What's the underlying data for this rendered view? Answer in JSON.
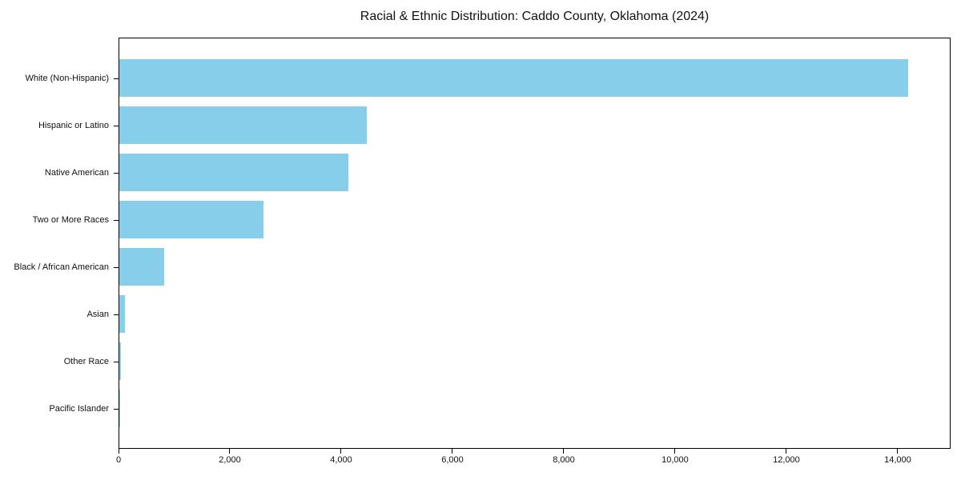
{
  "chart_data": {
    "type": "bar",
    "orientation": "horizontal",
    "title": "Racial & Ethnic Distribution: Caddo County, Oklahoma (2024)",
    "categories": [
      "White (Non-Hispanic)",
      "Hispanic or Latino",
      "Native American",
      "Two or More Races",
      "Black / African American",
      "Asian",
      "Other Race",
      "Pacific Islander"
    ],
    "values": [
      14200,
      4455,
      4125,
      2590,
      810,
      105,
      30,
      5
    ],
    "xlabel": "",
    "ylabel": "",
    "xlim": [
      0,
      14950
    ],
    "x_ticks": [
      0,
      2000,
      4000,
      6000,
      8000,
      10000,
      12000,
      14000
    ],
    "x_tick_labels": [
      "0",
      "2,000",
      "4,000",
      "6,000",
      "8,000",
      "10,000",
      "12,000",
      "14,000"
    ],
    "bar_color": "#87CEEB",
    "axis_color": "#000000",
    "text_color": "#111111",
    "grid": false,
    "legend": false
  }
}
